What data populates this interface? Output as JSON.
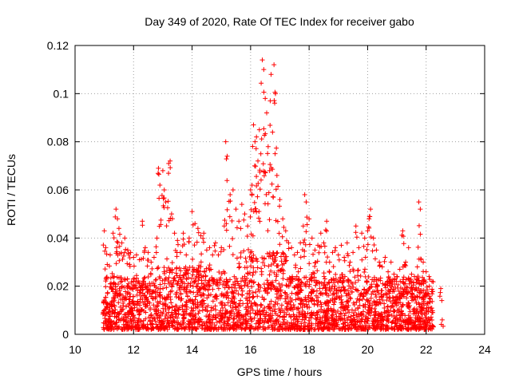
{
  "chart_data": {
    "type": "scatter",
    "title": "Day 349 of 2020, Rate Of TEC Index for receiver gabo",
    "xlabel": "GPS time / hours",
    "ylabel": "ROTI / TECUs",
    "xlim": [
      10,
      24
    ],
    "ylim": [
      0,
      0.12
    ],
    "xticks": [
      10,
      12,
      14,
      16,
      18,
      20,
      22,
      24
    ],
    "xtick_labels": [
      "10",
      "12",
      "14",
      "16",
      "18",
      "20",
      "22",
      "24"
    ],
    "yticks": [
      0,
      0.02,
      0.04,
      0.06,
      0.08,
      0.1,
      0.12
    ],
    "ytick_labels": [
      "0",
      "0.02",
      "0.04",
      "0.06",
      "0.08",
      "0.1",
      "0.12"
    ],
    "grid": true,
    "marker": "+",
    "series_color": "#ff0000",
    "series": [
      {
        "name": "ROTI",
        "x": [
          11.0,
          11.05,
          11.1,
          11.2,
          11.3,
          11.4,
          11.45,
          11.5,
          11.6,
          11.7,
          11.8,
          11.9,
          12.0,
          12.1,
          12.2,
          12.3,
          12.4,
          12.5,
          12.6,
          12.7,
          12.8,
          12.85,
          12.9,
          13.0,
          13.05,
          13.1,
          13.2,
          13.25,
          13.3,
          13.4,
          13.5,
          13.6,
          13.7,
          13.8,
          13.9,
          14.0,
          14.1,
          14.2,
          14.3,
          14.4,
          14.5,
          14.6,
          14.7,
          14.8,
          14.9,
          15.0,
          15.1,
          15.15,
          15.2,
          15.3,
          15.4,
          15.5,
          15.6,
          15.7,
          15.8,
          15.9,
          16.0,
          16.05,
          16.1,
          16.15,
          16.2,
          16.25,
          16.3,
          16.35,
          16.4,
          16.45,
          16.5,
          16.55,
          16.6,
          16.65,
          16.7,
          16.75,
          16.8,
          16.85,
          16.9,
          17.0,
          17.1,
          17.2,
          17.3,
          17.4,
          17.5,
          17.6,
          17.7,
          17.8,
          17.85,
          17.9,
          18.0,
          18.1,
          18.2,
          18.3,
          18.4,
          18.5,
          18.6,
          18.7,
          18.8,
          18.9,
          19.0,
          19.1,
          19.2,
          19.3,
          19.4,
          19.5,
          19.6,
          19.7,
          19.8,
          19.9,
          20.0,
          20.05,
          20.1,
          20.2,
          20.3,
          20.4,
          20.5,
          20.6,
          20.7,
          20.8,
          20.9,
          21.0,
          21.1,
          21.2,
          21.3,
          21.4,
          21.5,
          21.6,
          21.7,
          21.75,
          21.8,
          21.9,
          22.0,
          22.1,
          22.2,
          22.5,
          22.55
        ],
        "y": [
          0.043,
          0.036,
          0.029,
          0.033,
          0.042,
          0.052,
          0.048,
          0.044,
          0.038,
          0.04,
          0.035,
          0.034,
          0.032,
          0.033,
          0.031,
          0.047,
          0.036,
          0.034,
          0.03,
          0.032,
          0.04,
          0.069,
          0.062,
          0.068,
          0.06,
          0.055,
          0.071,
          0.072,
          0.05,
          0.042,
          0.039,
          0.034,
          0.042,
          0.033,
          0.04,
          0.051,
          0.046,
          0.044,
          0.041,
          0.042,
          0.035,
          0.036,
          0.033,
          0.038,
          0.033,
          0.036,
          0.045,
          0.08,
          0.074,
          0.058,
          0.06,
          0.052,
          0.047,
          0.054,
          0.05,
          0.045,
          0.06,
          0.062,
          0.087,
          0.08,
          0.082,
          0.072,
          0.085,
          0.075,
          0.114,
          0.11,
          0.098,
          0.092,
          0.078,
          0.068,
          0.108,
          0.084,
          0.112,
          0.1,
          0.066,
          0.056,
          0.048,
          0.043,
          0.038,
          0.036,
          0.033,
          0.034,
          0.038,
          0.045,
          0.058,
          0.055,
          0.048,
          0.04,
          0.035,
          0.037,
          0.042,
          0.038,
          0.047,
          0.03,
          0.034,
          0.036,
          0.033,
          0.037,
          0.032,
          0.038,
          0.03,
          0.034,
          0.045,
          0.036,
          0.042,
          0.04,
          0.043,
          0.048,
          0.052,
          0.04,
          0.035,
          0.03,
          0.028,
          0.032,
          0.026,
          0.03,
          0.025,
          0.024,
          0.027,
          0.043,
          0.03,
          0.036,
          0.025,
          0.024,
          0.028,
          0.055,
          0.052,
          0.03,
          0.026,
          0.024,
          0.022,
          0.019,
          0.006
        ],
        "band_note": "dense cluster of points between 0.002 and ~0.03 from 11 to 22.2 hours"
      }
    ]
  }
}
